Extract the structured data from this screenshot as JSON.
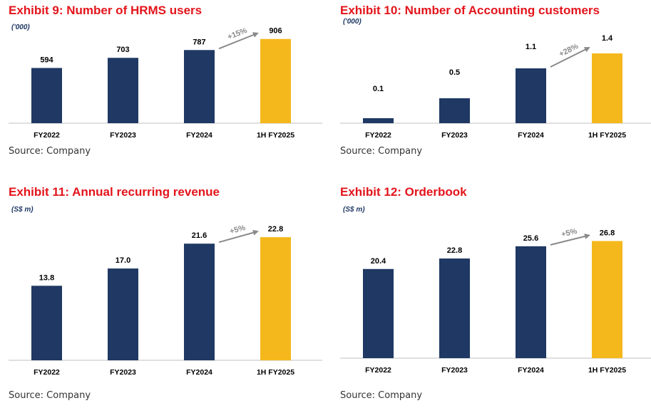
{
  "colors": {
    "title": "#e3141b",
    "bar_primary": "#1f3864",
    "bar_highlight": "#f5b81c",
    "arrow": "#8a8a8a",
    "axis": "#bfbfbf"
  },
  "chart_data": [
    {
      "type": "bar",
      "title": "Exhibit 9: Number of HRMS users",
      "unit": "('000)",
      "categories": [
        "FY2022",
        "FY2023",
        "FY2024",
        "1H FY2025"
      ],
      "values": [
        594,
        703,
        787,
        906
      ],
      "value_labels": [
        "594",
        "703",
        "787",
        "906"
      ],
      "highlight_index": 3,
      "growth_label": "+15%",
      "ylim": [
        0,
        950
      ],
      "source": "Source: Company"
    },
    {
      "type": "bar",
      "title": "Exhibit 10: Number of Accounting customers",
      "unit": "('000)",
      "categories": [
        "FY2022",
        "FY2023",
        "FY2024",
        "1H FY2025"
      ],
      "values": [
        0.1,
        0.5,
        1.1,
        1.4
      ],
      "value_labels": [
        "0.1",
        "0.5",
        "1.1",
        "1.4"
      ],
      "highlight_index": 3,
      "growth_label": "+28%",
      "ylim": [
        0,
        1.5
      ],
      "source": "Source: Company"
    },
    {
      "type": "bar",
      "title": "Exhibit 11: Annual recurring revenue",
      "unit": "(S$ m)",
      "categories": [
        "FY2022",
        "FY2023",
        "FY2024",
        "1H FY2025"
      ],
      "values": [
        13.8,
        17.0,
        21.6,
        22.8
      ],
      "value_labels": [
        "13.8",
        "17.0",
        "21.6",
        "22.8"
      ],
      "highlight_index": 3,
      "growth_label": "+5%",
      "ylim": [
        0,
        24
      ],
      "source": "Source: Company"
    },
    {
      "type": "bar",
      "title": "Exhibit 12: Orderbook",
      "unit": "(S$ m)",
      "categories": [
        "FY2022",
        "FY2023",
        "FY2024",
        "1H FY2025"
      ],
      "values": [
        20.4,
        22.8,
        25.6,
        26.8
      ],
      "value_labels": [
        "20.4",
        "22.8",
        "25.6",
        "26.8"
      ],
      "highlight_index": 3,
      "growth_label": "+5%",
      "ylim": [
        0,
        29
      ],
      "source": "Source: Company"
    }
  ]
}
